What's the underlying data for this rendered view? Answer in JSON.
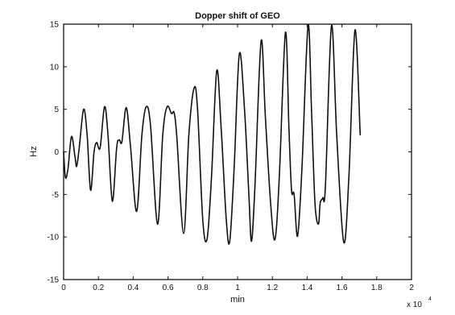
{
  "chart_data": {
    "type": "line",
    "title": "Dopper shift of GEO",
    "xlabel": "min",
    "ylabel": "Hz",
    "x_multiplier_label": "x 10",
    "x_multiplier_exponent": "4",
    "xlim": [
      0,
      2
    ],
    "ylim": [
      -15,
      15
    ],
    "x_ticks": [
      0,
      0.2,
      0.4,
      0.6,
      0.8,
      1,
      1.2,
      1.4,
      1.6,
      1.8,
      2
    ],
    "x_tick_labels": [
      "0",
      "0.2",
      "0.4",
      "0.6",
      "0.8",
      "1",
      "1.2",
      "1.4",
      "1.6",
      "1.8",
      "2"
    ],
    "y_ticks": [
      -15,
      -10,
      -5,
      0,
      5,
      10,
      15
    ],
    "y_tick_labels": [
      "-15",
      "-10",
      "-5",
      "0",
      "5",
      "10",
      "15"
    ],
    "grid": false,
    "line_color": "#111111",
    "series": [
      {
        "points": [
          [
            0.0,
            0.0
          ],
          [
            0.01,
            -3.0
          ],
          [
            0.025,
            -2.0
          ],
          [
            0.045,
            1.8
          ],
          [
            0.065,
            -0.5
          ],
          [
            0.075,
            -1.7
          ],
          [
            0.09,
            0.5
          ],
          [
            0.115,
            5.0
          ],
          [
            0.135,
            2.0
          ],
          [
            0.155,
            -4.5
          ],
          [
            0.175,
            0.0
          ],
          [
            0.19,
            1.1
          ],
          [
            0.21,
            0.5
          ],
          [
            0.235,
            5.3
          ],
          [
            0.255,
            2.0
          ],
          [
            0.28,
            -5.8
          ],
          [
            0.305,
            0.5
          ],
          [
            0.32,
            1.4
          ],
          [
            0.335,
            1.2
          ],
          [
            0.36,
            5.2
          ],
          [
            0.385,
            0.5
          ],
          [
            0.42,
            -7.0
          ],
          [
            0.45,
            2.0
          ],
          [
            0.475,
            5.3
          ],
          [
            0.5,
            3.0
          ],
          [
            0.54,
            -8.5
          ],
          [
            0.57,
            2.0
          ],
          [
            0.595,
            5.3
          ],
          [
            0.62,
            4.5
          ],
          [
            0.635,
            4.6
          ],
          [
            0.65,
            2.0
          ],
          [
            0.69,
            -9.6
          ],
          [
            0.72,
            2.0
          ],
          [
            0.75,
            7.5
          ],
          [
            0.77,
            5.0
          ],
          [
            0.8,
            -8.0
          ],
          [
            0.825,
            -10.2
          ],
          [
            0.85,
            -3.0
          ],
          [
            0.88,
            9.5
          ],
          [
            0.905,
            3.0
          ],
          [
            0.935,
            -8.0
          ],
          [
            0.955,
            -10.5
          ],
          [
            0.98,
            -2.0
          ],
          [
            1.01,
            11.5
          ],
          [
            1.04,
            5.0
          ],
          [
            1.065,
            -5.0
          ],
          [
            1.08,
            -10.5
          ],
          [
            1.1,
            -4.0
          ],
          [
            1.135,
            13.0
          ],
          [
            1.16,
            4.0
          ],
          [
            1.19,
            -6.0
          ],
          [
            1.215,
            -10.3
          ],
          [
            1.24,
            -3.0
          ],
          [
            1.275,
            14.0
          ],
          [
            1.295,
            3.0
          ],
          [
            1.31,
            -4.5
          ],
          [
            1.325,
            -5.0
          ],
          [
            1.345,
            -9.9
          ],
          [
            1.37,
            -2.0
          ],
          [
            1.405,
            14.8
          ],
          [
            1.425,
            5.0
          ],
          [
            1.445,
            -6.0
          ],
          [
            1.465,
            -8.5
          ],
          [
            1.475,
            -6.0
          ],
          [
            1.49,
            -5.4
          ],
          [
            1.505,
            -4.0
          ],
          [
            1.54,
            14.8
          ],
          [
            1.57,
            2.0
          ],
          [
            1.61,
            -10.6
          ],
          [
            1.64,
            -3.0
          ],
          [
            1.675,
            14.3
          ],
          [
            1.705,
            2.0
          ]
        ]
      }
    ]
  }
}
